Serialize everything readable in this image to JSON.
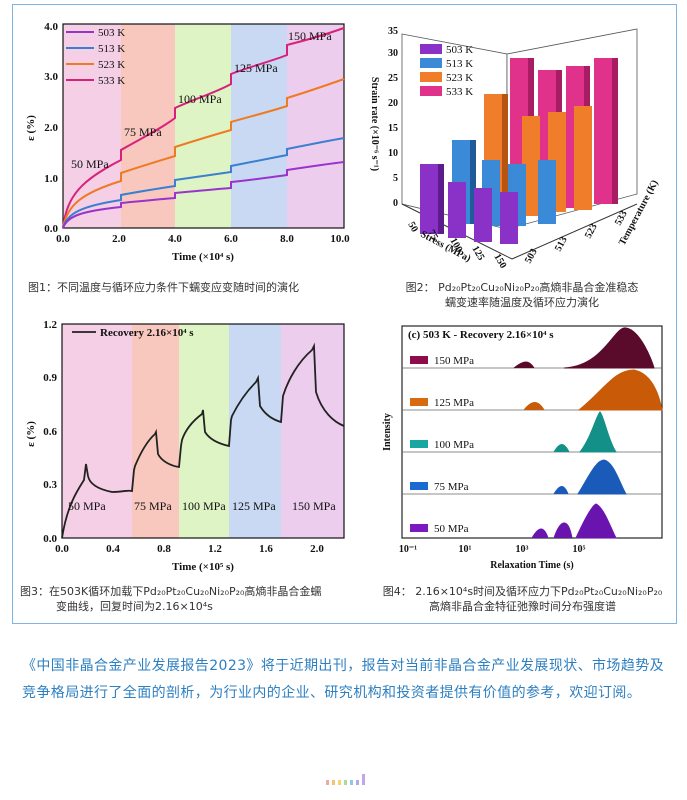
{
  "fig1": {
    "caption": "图1：不同温度与循环应力条件下蠕变应变随时间的演化",
    "ylabel": "ε (%)",
    "xlabel": "Time (×10⁴ s)",
    "yticks": [
      "0.0",
      "1.0",
      "2.0",
      "3.0",
      "4.0"
    ],
    "xticks": [
      "0.0",
      "2.0",
      "4.0",
      "6.0",
      "8.0",
      "10.0"
    ],
    "legend": [
      "503 K",
      "513 K",
      "523 K",
      "533 K"
    ],
    "stress_labels": [
      "50 MPa",
      "75 MPa",
      "100 MPa",
      "125 MPa",
      "150 MPa"
    ],
    "colors": {
      "503": "#9933cc",
      "513": "#3a7fd0",
      "523": "#ee7a22",
      "533": "#d8227a"
    }
  },
  "fig2": {
    "caption_line1": "图2：  Pd₂₀Pt₂₀Cu₂₀Ni₂₀P₂₀高熵非晶合金准稳态",
    "caption_line2": "蠕变速率随温度及循环应力演化",
    "zlabel": "Strain rate (×10⁻⁶ s⁻¹)",
    "xlabel": "Stress (MPa)",
    "ylabel": "Temperature (K)",
    "zticks": [
      "0",
      "5",
      "10",
      "15",
      "20",
      "25",
      "30",
      "35"
    ],
    "stress_ticks": [
      "50",
      "75",
      "100",
      "125",
      "150"
    ],
    "temp_ticks": [
      "503",
      "513",
      "523",
      "533"
    ],
    "legend": [
      "503 K",
      "513 K",
      "523 K",
      "533 K"
    ]
  },
  "fig3": {
    "caption_line1": "图3：在503K循环加载下Pd₂₀Pt₂₀Cu₂₀Ni₂₀P₂₀高熵非晶合金蠕",
    "caption_line2": "变曲线，回复时间为2.16×10⁴s",
    "legend": "Recovery 2.16×10⁴ s",
    "ylabel": "ε (%)",
    "xlabel": "Time (×10⁵ s)",
    "yticks": [
      "0.0",
      "0.3",
      "0.6",
      "0.9",
      "1.2"
    ],
    "xticks": [
      "0.0",
      "0.4",
      "0.8",
      "1.2",
      "1.6",
      "2.0"
    ],
    "stress_labels": [
      "50 MPa",
      "75 MPa",
      "100 MPa",
      "125 MPa",
      "150 MPa"
    ]
  },
  "fig4": {
    "caption_line1": "图4： 2.16×10⁴s时间及循环应力下Pd₂₀Pt₂₀Cu₂₀Ni₂₀P₂₀",
    "caption_line2": "高熵非晶合金特征弛豫时间分布强度谱",
    "title": "(c)  503 K - Recovery 2.16×10⁴ s",
    "ylabel": "Intensity",
    "xlabel": "Relaxation Time (s)",
    "xticks": [
      "10⁻¹",
      "10¹",
      "10³",
      "10⁵"
    ],
    "rows": [
      "150 MPa",
      "125 MPa",
      "100 MPa",
      "75 MPa",
      "50 MPa"
    ]
  },
  "paragraph": "《中国非晶合金产业发展报告2023》将于近期出刊，报告对当前非晶合金产业发展现状、市场趋势及竞争格局进行了全面的剖析，为行业内的企业、研究机构和投资者提供有价值的参考，欢迎订阅。"
}
